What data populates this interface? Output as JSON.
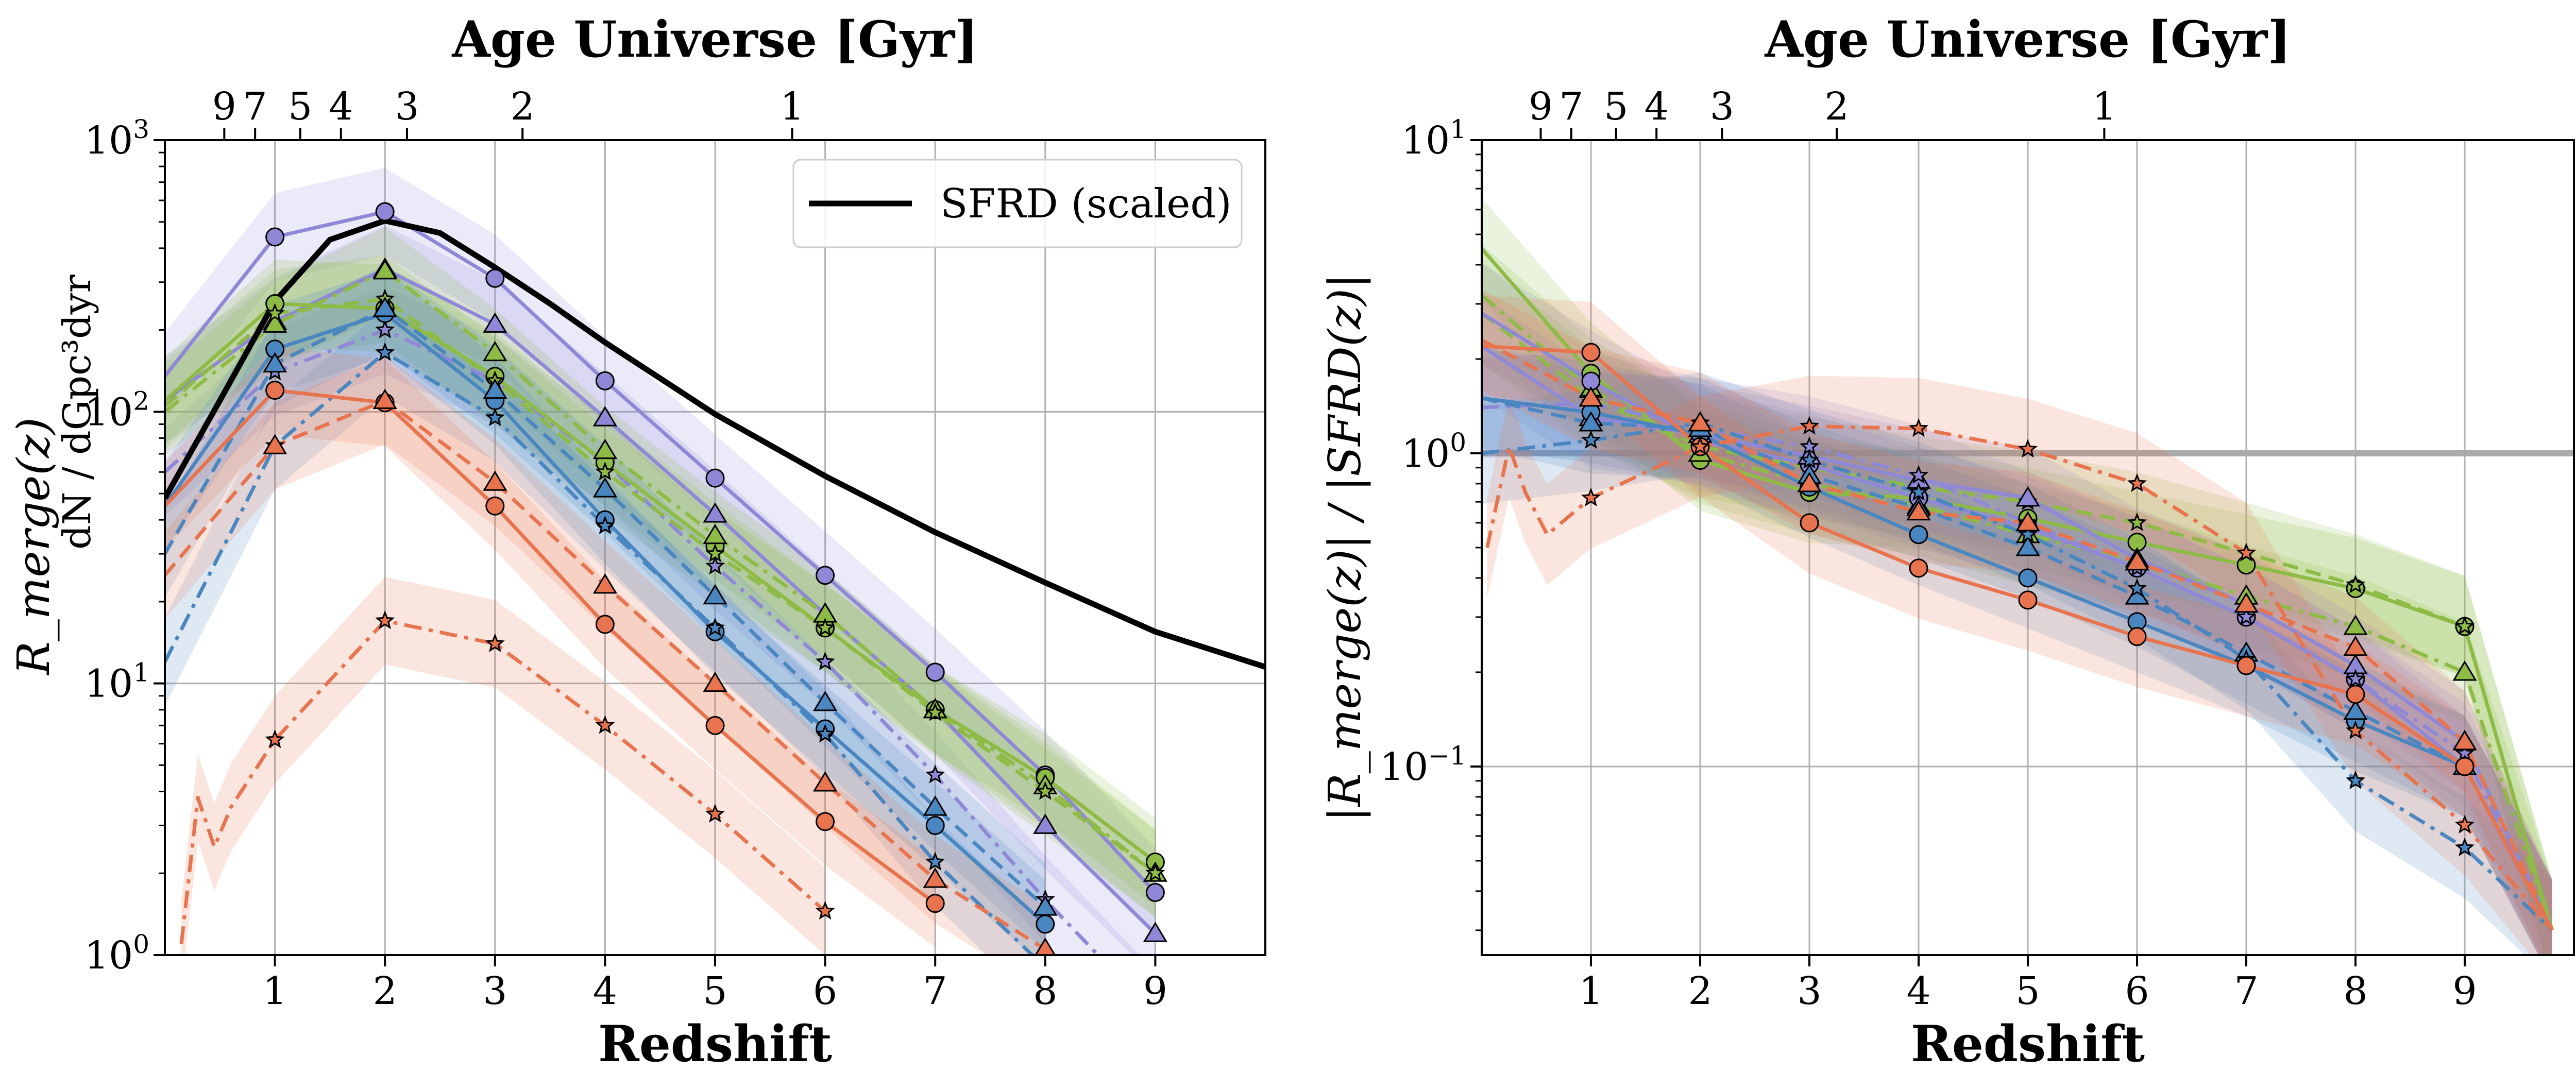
{
  "colors": {
    "orange": "#E8744F",
    "blue": "#4A86C0",
    "purple": "#8F88D6",
    "green": "#8DBB45",
    "sfrd": "#000000",
    "grid": "#b0b0b0",
    "reference_line": "#aaaaaa"
  },
  "chart_data": [
    {
      "type": "line",
      "id": "left",
      "title": "Age Universe [Gyr]",
      "top_ticks": [
        {
          "label": "9",
          "z": 0.54
        },
        {
          "label": "7",
          "z": 0.82
        },
        {
          "label": "5",
          "z": 1.23
        },
        {
          "label": "4",
          "z": 1.6
        },
        {
          "label": "3",
          "z": 2.2
        },
        {
          "label": "2",
          "z": 3.25
        },
        {
          "label": "1",
          "z": 5.7
        }
      ],
      "xlabel": "Redshift",
      "ylabel": "R_merge(z)",
      "ylabel_unit": "dN / dGpc³dyr",
      "xlim": [
        0,
        10
      ],
      "ylim": [
        1,
        1000
      ],
      "yscale": "log",
      "x_ticks": [
        "1",
        "2",
        "3",
        "4",
        "5",
        "6",
        "7",
        "8",
        "9"
      ],
      "y_ticks": [
        {
          "base": "10",
          "exp": "0",
          "value": 1
        },
        {
          "base": "10",
          "exp": "1",
          "value": 10
        },
        {
          "base": "10",
          "exp": "2",
          "value": 100
        },
        {
          "base": "10",
          "exp": "3",
          "value": 1000
        }
      ],
      "grid": true,
      "legend": {
        "position": "top-right",
        "entries": [
          "SFRD (scaled)"
        ]
      },
      "sfrd": {
        "name": "SFRD (scaled)",
        "x": [
          0,
          0.5,
          1,
          1.5,
          2,
          2.5,
          3,
          3.5,
          4,
          5,
          6,
          7,
          8,
          9,
          10
        ],
        "y": [
          48,
          110,
          255,
          430,
          505,
          455,
          340,
          250,
          180,
          98,
          58,
          36,
          23.5,
          15.5,
          11.5
        ]
      },
      "series": [
        {
          "color": "purple",
          "style": "solid",
          "marker": "circle",
          "x": [
            0,
            1,
            2,
            3,
            4,
            5,
            6,
            7,
            8,
            9
          ],
          "y": [
            135,
            440,
            545,
            310,
            130,
            57,
            25,
            11,
            4.6,
            1.7
          ]
        },
        {
          "color": "purple",
          "style": "solid",
          "marker": "triangle",
          "x": [
            0,
            1,
            2,
            3,
            4,
            5,
            6,
            7,
            8,
            9
          ],
          "y": [
            110,
            215,
            335,
            210,
            95,
            42,
            18,
            8,
            3,
            1.2
          ]
        },
        {
          "color": "purple",
          "style": "dashdot",
          "marker": "star",
          "x": [
            0,
            1,
            2,
            3,
            4,
            5,
            6,
            7,
            8,
            9
          ],
          "y": [
            60,
            140,
            200,
            130,
            65,
            27,
            12,
            4.6,
            1.6,
            0.6
          ]
        },
        {
          "color": "green",
          "style": "solid",
          "marker": "circle",
          "x": [
            0,
            1,
            2,
            3,
            4,
            5,
            6,
            7,
            8,
            9
          ],
          "y": [
            110,
            250,
            240,
            135,
            65,
            32,
            16,
            8,
            4.5,
            2.2
          ]
        },
        {
          "color": "green",
          "style": "dashdot",
          "marker": "triangle",
          "x": [
            0,
            1,
            2,
            3,
            4,
            5,
            6,
            7,
            8,
            9
          ],
          "y": [
            100,
            210,
            330,
            165,
            72,
            35,
            18,
            8,
            4.2,
            2
          ]
        },
        {
          "color": "green",
          "style": "dashed",
          "marker": "star",
          "x": [
            0,
            1,
            2,
            3,
            4,
            5,
            6,
            7,
            8,
            9
          ],
          "y": [
            105,
            230,
            260,
            130,
            60,
            30,
            16,
            7.8,
            4,
            2
          ]
        },
        {
          "color": "blue",
          "style": "solid",
          "marker": "circle",
          "x": [
            0,
            1,
            2,
            3,
            4,
            5,
            6,
            7,
            8
          ],
          "y": [
            45,
            170,
            230,
            110,
            40,
            15.5,
            6.8,
            3,
            1.3
          ]
        },
        {
          "color": "blue",
          "style": "dashed",
          "marker": "triangle",
          "x": [
            0,
            1,
            2,
            3,
            4,
            5,
            6,
            7,
            8
          ],
          "y": [
            30,
            150,
            240,
            120,
            52,
            21,
            8.5,
            3.5,
            1.5
          ]
        },
        {
          "color": "blue",
          "style": "dashdot",
          "marker": "star",
          "x": [
            0,
            1,
            2,
            3,
            4,
            5,
            6,
            7,
            8
          ],
          "y": [
            12,
            75,
            165,
            95,
            38,
            16,
            6.5,
            2.2,
            0.9
          ]
        },
        {
          "color": "orange",
          "style": "solid",
          "marker": "circle",
          "x": [
            0,
            1,
            2,
            3,
            4,
            5,
            6,
            7
          ],
          "y": [
            45,
            120,
            108,
            45,
            16.5,
            7,
            3.1,
            1.55
          ]
        },
        {
          "color": "orange",
          "style": "dashed",
          "marker": "triangle",
          "x": [
            0,
            1,
            2,
            3,
            4,
            5,
            6,
            7,
            8
          ],
          "y": [
            25,
            75,
            110,
            55,
            23,
            10,
            4.3,
            1.9,
            1.05
          ]
        },
        {
          "color": "orange",
          "style": "dashdot",
          "marker": "star",
          "x": [
            0.15,
            0.3,
            0.45,
            0.6,
            1,
            2,
            3,
            4,
            5,
            6
          ],
          "y": [
            1.1,
            3.8,
            2.5,
            3.5,
            6.2,
            17,
            14,
            7,
            3.3,
            1.45
          ]
        }
      ]
    },
    {
      "type": "line",
      "id": "right",
      "title": "Age Universe [Gyr]",
      "top_ticks": [
        {
          "label": "9",
          "z": 0.54
        },
        {
          "label": "7",
          "z": 0.82
        },
        {
          "label": "5",
          "z": 1.23
        },
        {
          "label": "4",
          "z": 1.6
        },
        {
          "label": "3",
          "z": 2.2
        },
        {
          "label": "2",
          "z": 3.25
        },
        {
          "label": "1",
          "z": 5.7
        }
      ],
      "xlabel": "Redshift",
      "ylabel": "|R_merge(z)|  /  |SFRD(z)|",
      "xlim": [
        0,
        10
      ],
      "ylim": [
        0.025,
        10
      ],
      "yscale": "log",
      "x_ticks": [
        "1",
        "2",
        "3",
        "4",
        "5",
        "6",
        "7",
        "8",
        "9"
      ],
      "y_ticks": [
        {
          "base": "10",
          "exp": "−1",
          "value": 0.1
        },
        {
          "base": "10",
          "exp": "0",
          "value": 1
        },
        {
          "base": "10",
          "exp": "1",
          "value": 10
        }
      ],
      "reference_line": 1,
      "grid": true,
      "series": [
        {
          "color": "green",
          "style": "solid",
          "marker": "circle",
          "x": [
            0,
            1,
            2,
            3,
            4,
            5,
            6,
            7,
            8,
            9,
            9.8
          ],
          "y": [
            4.5,
            1.8,
            0.95,
            0.75,
            0.72,
            0.62,
            0.52,
            0.44,
            0.37,
            0.28,
            0.03
          ]
        },
        {
          "color": "green",
          "style": "dashdot",
          "marker": "triangle",
          "x": [
            0,
            1,
            2,
            3,
            4,
            5,
            6,
            7,
            8,
            9,
            9.8
          ],
          "y": [
            3.2,
            1.6,
            1,
            0.8,
            0.68,
            0.55,
            0.45,
            0.35,
            0.28,
            0.2,
            0.03
          ]
        },
        {
          "color": "green",
          "style": "dashed",
          "marker": "star",
          "x": [
            0,
            1,
            2,
            3,
            4,
            5,
            6,
            7,
            8,
            9,
            9.8
          ],
          "y": [
            2.8,
            1.5,
            1.05,
            0.9,
            0.78,
            0.7,
            0.6,
            0.48,
            0.38,
            0.28,
            0.03
          ]
        },
        {
          "color": "purple",
          "style": "solid",
          "marker": "circle",
          "x": [
            0,
            1,
            2,
            3,
            4,
            5,
            6,
            7,
            8,
            9,
            9.8
          ],
          "y": [
            2.8,
            1.7,
            1.1,
            0.92,
            0.72,
            0.58,
            0.43,
            0.3,
            0.19,
            0.1,
            0.03
          ]
        },
        {
          "color": "purple",
          "style": "solid",
          "marker": "triangle",
          "x": [
            0,
            1,
            2,
            3,
            4,
            5,
            6,
            7,
            8,
            9,
            9.8
          ],
          "y": [
            2.2,
            1.3,
            1.15,
            0.98,
            0.82,
            0.72,
            0.46,
            0.33,
            0.21,
            0.12,
            0.03
          ]
        },
        {
          "color": "purple",
          "style": "dashdot",
          "marker": "star",
          "x": [
            0,
            1,
            2,
            3,
            4,
            5,
            6,
            7,
            8,
            9,
            9.8
          ],
          "y": [
            1.4,
            1.45,
            1.2,
            1.05,
            0.85,
            0.6,
            0.43,
            0.3,
            0.19,
            0.11,
            0.03
          ]
        },
        {
          "color": "blue",
          "style": "solid",
          "marker": "circle",
          "x": [
            0,
            1,
            2,
            3,
            4,
            5,
            6,
            7,
            8,
            9,
            9.8
          ],
          "y": [
            1.5,
            1.35,
            1.15,
            0.78,
            0.55,
            0.4,
            0.29,
            0.21,
            0.14,
            0.1,
            0.03
          ]
        },
        {
          "color": "blue",
          "style": "dashed",
          "marker": "triangle",
          "x": [
            0,
            1,
            2,
            3,
            4,
            5,
            6,
            7,
            8,
            9,
            9.8
          ],
          "y": [
            1.5,
            1.25,
            1.2,
            0.85,
            0.67,
            0.5,
            0.35,
            0.23,
            0.15,
            0.1,
            0.03
          ]
        },
        {
          "color": "blue",
          "style": "dashdot",
          "marker": "star",
          "x": [
            0,
            1,
            2,
            3,
            4,
            5,
            6,
            7,
            8,
            9,
            9.8
          ],
          "y": [
            1,
            1.1,
            1.25,
            0.95,
            0.75,
            0.55,
            0.37,
            0.22,
            0.09,
            0.055,
            0.03
          ]
        },
        {
          "color": "orange",
          "style": "solid",
          "marker": "circle",
          "x": [
            0,
            1,
            2,
            3,
            4,
            5,
            6,
            7,
            8,
            9,
            9.8
          ],
          "y": [
            2.2,
            2.1,
            1.05,
            0.6,
            0.43,
            0.34,
            0.26,
            0.21,
            0.17,
            0.1,
            0.03
          ]
        },
        {
          "color": "orange",
          "style": "dashed",
          "marker": "triangle",
          "x": [
            0,
            1,
            2,
            3,
            4,
            5,
            6,
            7,
            8,
            9,
            9.8
          ],
          "y": [
            2.3,
            1.5,
            1.25,
            0.8,
            0.65,
            0.6,
            0.45,
            0.33,
            0.24,
            0.12,
            0.03
          ]
        },
        {
          "color": "orange",
          "style": "dashdot",
          "marker": "star",
          "x": [
            0.05,
            0.25,
            0.4,
            0.6,
            1,
            2,
            3,
            4,
            5,
            6,
            7,
            8,
            9,
            9.8
          ],
          "y": [
            0.5,
            1.05,
            0.75,
            0.55,
            0.72,
            1.05,
            1.22,
            1.2,
            1.03,
            0.8,
            0.48,
            0.13,
            0.065,
            0.03
          ]
        }
      ]
    }
  ]
}
